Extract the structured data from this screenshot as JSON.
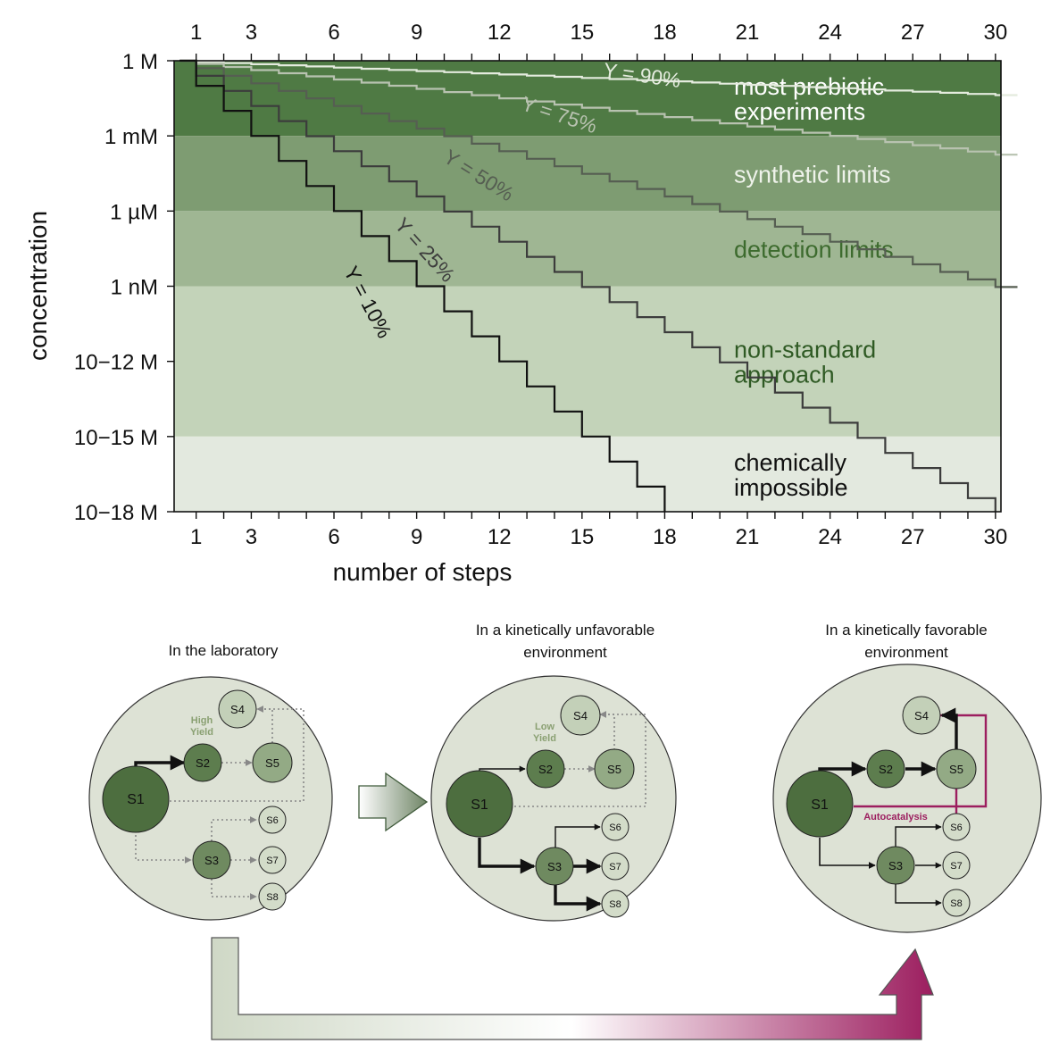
{
  "chart_data": {
    "type": "line",
    "xlabel": "number of steps",
    "ylabel": "concentration",
    "x_ticks": [
      "1",
      "3",
      "6",
      "9",
      "12",
      "15",
      "18",
      "21",
      "24",
      "27",
      "30"
    ],
    "x_tick_values": [
      1,
      3,
      6,
      9,
      12,
      15,
      18,
      21,
      24,
      27,
      30
    ],
    "y_ticks": [
      "1 M",
      "1 mM",
      "1 µM",
      "1 nM",
      "10−12 M",
      "10−15 M",
      "10−18 M"
    ],
    "y_tick_values_log10": [
      0,
      -3,
      -6,
      -9,
      -12,
      -15,
      -18
    ],
    "xlim": [
      0,
      30
    ],
    "ylim_log10": [
      -18,
      0
    ],
    "y_scale": "log",
    "step_shape": "staircase",
    "series": [
      {
        "name": "Y = 90%",
        "yield": 0.9,
        "start_concentration_M": 1,
        "max_steps": 30,
        "color": "#e4ebde"
      },
      {
        "name": "Y = 75%",
        "yield": 0.75,
        "start_concentration_M": 1,
        "max_steps": 30,
        "color": "#b8c2b0"
      },
      {
        "name": "Y = 50%",
        "yield": 0.5,
        "start_concentration_M": 1,
        "max_steps": 30,
        "color": "#565e52"
      },
      {
        "name": "Y = 25%",
        "yield": 0.25,
        "start_concentration_M": 1,
        "max_steps": 30,
        "color": "#3c3c3c"
      },
      {
        "name": "Y = 10%",
        "yield": 0.1,
        "start_concentration_M": 1,
        "max_steps": 30,
        "color": "#111111"
      }
    ],
    "bands": [
      {
        "label_lines": [
          "most prebiotic",
          "experiments"
        ],
        "from_log10": 0,
        "to_log10": -3,
        "fill": "#4f7a44",
        "text_color": "#ffffff"
      },
      {
        "label_lines": [
          "synthetic limits"
        ],
        "from_log10": -3,
        "to_log10": -6,
        "fill": "#7e9c72",
        "text_color": "#eef2ea"
      },
      {
        "label_lines": [
          "detection limits"
        ],
        "from_log10": -6,
        "to_log10": -9,
        "fill": "#9fb693",
        "text_color": "#3d6b2e"
      },
      {
        "label_lines": [
          "non-standard",
          "approach"
        ],
        "from_log10": -9,
        "to_log10": -15,
        "fill": "#c3d3b9",
        "text_color": "#2f5a24"
      },
      {
        "label_lines": [
          "chemically",
          "impossible"
        ],
        "from_log10": -15,
        "to_log10": -18,
        "fill": "#e3e9df",
        "text_color": "#111111"
      }
    ]
  },
  "diagram": {
    "panels": [
      {
        "title_lines": [
          "In the laboratory"
        ],
        "yield_note_lines": [
          "High",
          "Yield"
        ],
        "nodes": [
          "S1",
          "S2",
          "S3",
          "S4",
          "S5",
          "S6",
          "S7",
          "S8"
        ]
      },
      {
        "title_lines": [
          "In a kinetically unfavorable",
          "environment"
        ],
        "yield_note_lines": [
          "Low",
          "Yield"
        ],
        "nodes": [
          "S1",
          "S2",
          "S3",
          "S4",
          "S5",
          "S6",
          "S7",
          "S8"
        ]
      },
      {
        "title_lines": [
          "In a kinetically favorable",
          "environment"
        ],
        "feedback_label": "Autocatalysis",
        "nodes": [
          "S1",
          "S2",
          "S3",
          "S4",
          "S5",
          "S6",
          "S7",
          "S8"
        ]
      }
    ],
    "colors": {
      "circle_bg": "#dde2d5",
      "s1": "#4d6e3f",
      "s2": "#5d7d4e",
      "s3": "#6f8a60",
      "s5": "#93aa85",
      "s4": "#c3d0b8",
      "leaf": "#d3dcc9",
      "autocatalysis": "#9c1e5f"
    }
  }
}
